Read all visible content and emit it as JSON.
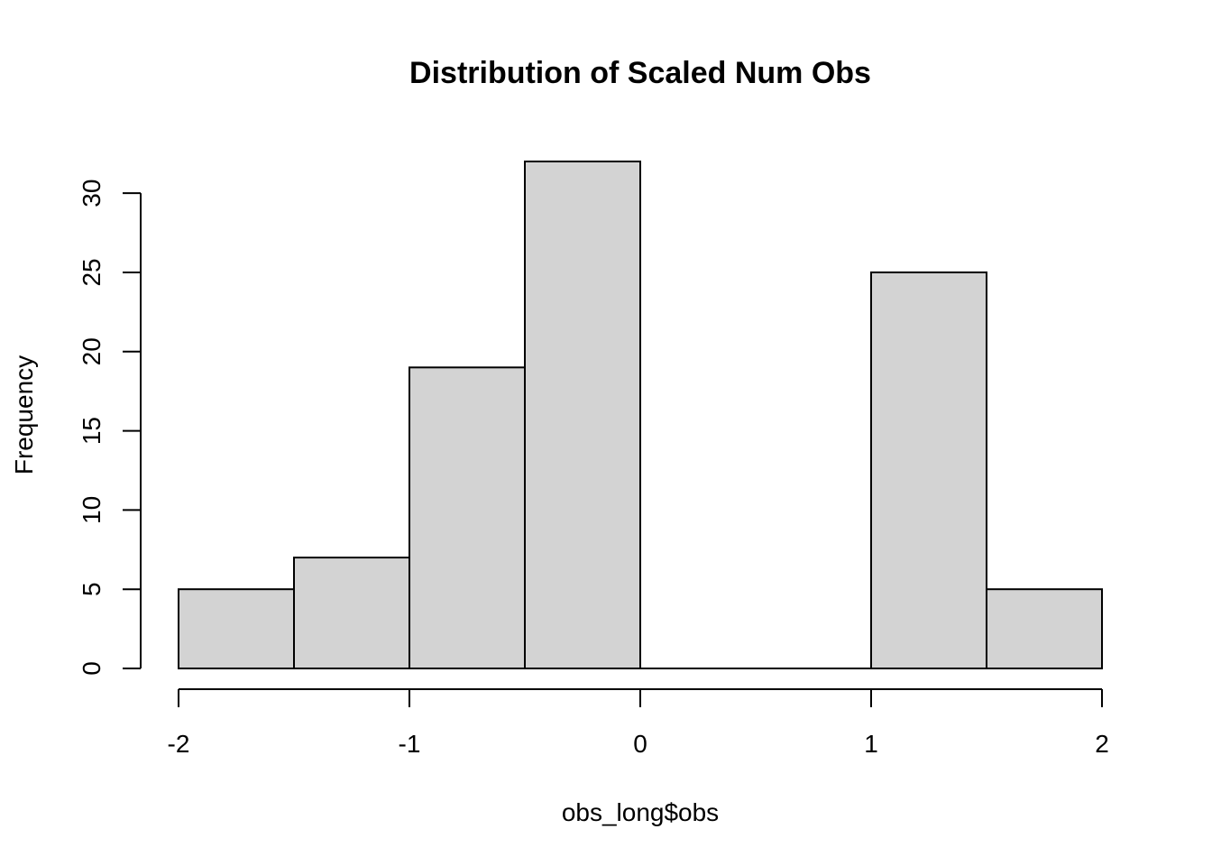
{
  "chart_data": {
    "type": "bar",
    "title": "Distribution of Scaled Num Obs",
    "xlabel": "obs_long$obs",
    "ylabel": "Frequency",
    "bins": [
      {
        "start": -2.0,
        "end": -1.5,
        "count": 5
      },
      {
        "start": -1.5,
        "end": -1.0,
        "count": 7
      },
      {
        "start": -1.0,
        "end": -0.5,
        "count": 19
      },
      {
        "start": -0.5,
        "end": 0.0,
        "count": 32
      },
      {
        "start": 0.0,
        "end": 0.5,
        "count": 0
      },
      {
        "start": 0.5,
        "end": 1.0,
        "count": 0
      },
      {
        "start": 1.0,
        "end": 1.5,
        "count": 25
      },
      {
        "start": 1.5,
        "end": 2.0,
        "count": 5
      }
    ],
    "xlim": [
      -2,
      2
    ],
    "ylim": [
      0,
      32
    ],
    "x_ticks": [
      -2,
      -1,
      0,
      1,
      2
    ],
    "y_ticks": [
      0,
      5,
      10,
      15,
      20,
      25,
      30
    ],
    "bar_color": "#d3d3d3",
    "grid": false,
    "legend": "none"
  }
}
